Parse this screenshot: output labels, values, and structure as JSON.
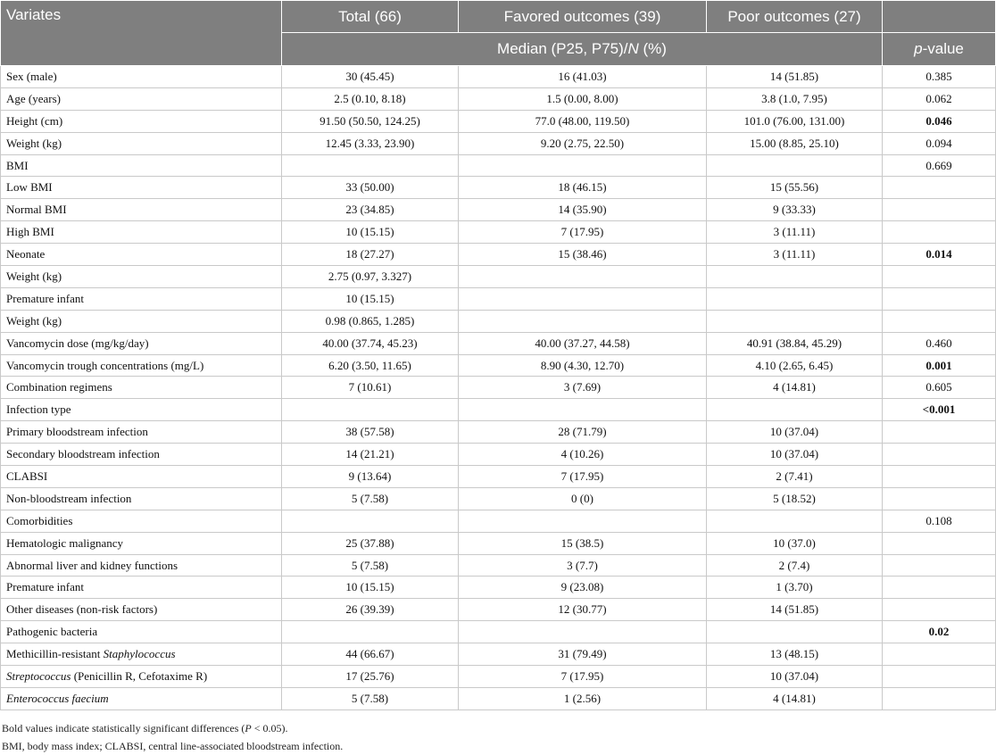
{
  "header": {
    "variates": "Variates",
    "total": "Total (66)",
    "favored": "Favored outcomes (39)",
    "poor": "Poor outcomes (27)",
    "median_pre": "Median (P25, P75)/",
    "median_n": "N",
    "median_post": " (%)",
    "p_italic": "p",
    "p_rest": "-value"
  },
  "rows": [
    {
      "label": "Sex (male)",
      "total": "30 (45.45)",
      "favored": "16 (41.03)",
      "poor": "14 (51.85)",
      "p": "0.385",
      "bold": false
    },
    {
      "label": "Age (years)",
      "total": "2.5 (0.10, 8.18)",
      "favored": "1.5 (0.00, 8.00)",
      "poor": "3.8 (1.0, 7.95)",
      "p": "0.062",
      "bold": false
    },
    {
      "label": "Height (cm)",
      "total": "91.50 (50.50, 124.25)",
      "favored": "77.0 (48.00, 119.50)",
      "poor": "101.0 (76.00, 131.00)",
      "p": "0.046",
      "bold": true
    },
    {
      "label": "Weight (kg)",
      "total": "12.45 (3.33, 23.90)",
      "favored": "9.20 (2.75, 22.50)",
      "poor": "15.00 (8.85, 25.10)",
      "p": "0.094",
      "bold": false
    },
    {
      "label": "BMI",
      "total": "",
      "favored": "",
      "poor": "",
      "p": "0.669",
      "bold": false
    },
    {
      "label": "Low BMI",
      "total": "33 (50.00)",
      "favored": "18 (46.15)",
      "poor": "15 (55.56)",
      "p": "",
      "bold": false
    },
    {
      "label": "Normal BMI",
      "total": "23 (34.85)",
      "favored": "14 (35.90)",
      "poor": "9 (33.33)",
      "p": "",
      "bold": false
    },
    {
      "label": "High BMI",
      "total": "10 (15.15)",
      "favored": "7 (17.95)",
      "poor": "3 (11.11)",
      "p": "",
      "bold": false
    },
    {
      "label": "Neonate",
      "total": "18 (27.27)",
      "favored": "15 (38.46)",
      "poor": "3 (11.11)",
      "p": "0.014",
      "bold": true
    },
    {
      "label": "Weight (kg)",
      "total": "2.75 (0.97, 3.327)",
      "favored": "",
      "poor": "",
      "p": "",
      "bold": false
    },
    {
      "label": "Premature infant",
      "total": "10 (15.15)",
      "favored": "",
      "poor": "",
      "p": "",
      "bold": false
    },
    {
      "label": "Weight (kg)",
      "total": "0.98 (0.865, 1.285)",
      "favored": "",
      "poor": "",
      "p": "",
      "bold": false
    },
    {
      "label": "Vancomycin dose (mg/kg/day)",
      "total": "40.00 (37.74, 45.23)",
      "favored": "40.00 (37.27, 44.58)",
      "poor": "40.91 (38.84, 45.29)",
      "p": "0.460",
      "bold": false
    },
    {
      "label": "Vancomycin trough concentrations (mg/L)",
      "total": "6.20 (3.50, 11.65)",
      "favored": "8.90 (4.30, 12.70)",
      "poor": "4.10 (2.65, 6.45)",
      "p": "0.001",
      "bold": true
    },
    {
      "label": "Combination regimens",
      "total": "7 (10.61)",
      "favored": "3 (7.69)",
      "poor": "4 (14.81)",
      "p": "0.605",
      "bold": false
    },
    {
      "label": "Infection type",
      "total": "",
      "favored": "",
      "poor": "",
      "p": "<0.001",
      "bold": true
    },
    {
      "label": "Primary bloodstream infection",
      "total": "38 (57.58)",
      "favored": "28 (71.79)",
      "poor": "10 (37.04)",
      "p": "",
      "bold": false
    },
    {
      "label": "Secondary bloodstream infection",
      "total": "14 (21.21)",
      "favored": "4 (10.26)",
      "poor": "10 (37.04)",
      "p": "",
      "bold": false
    },
    {
      "label": "CLABSI",
      "total": "9 (13.64)",
      "favored": "7 (17.95)",
      "poor": "2 (7.41)",
      "p": "",
      "bold": false
    },
    {
      "label": "Non-bloodstream infection",
      "total": "5 (7.58)",
      "favored": "0 (0)",
      "poor": "5 (18.52)",
      "p": "",
      "bold": false
    },
    {
      "label": "Comorbidities",
      "total": "",
      "favored": "",
      "poor": "",
      "p": "0.108",
      "bold": false
    },
    {
      "label": "Hematologic malignancy",
      "total": "25 (37.88)",
      "favored": "15 (38.5)",
      "poor": "10 (37.0)",
      "p": "",
      "bold": false
    },
    {
      "label": "Abnormal liver and kidney functions",
      "total": "5 (7.58)",
      "favored": "3 (7.7)",
      "poor": "2 (7.4)",
      "p": "",
      "bold": false
    },
    {
      "label": "Premature infant",
      "total": "10 (15.15)",
      "favored": "9 (23.08)",
      "poor": "1 (3.70)",
      "p": "",
      "bold": false
    },
    {
      "label": "Other diseases (non-risk factors)",
      "total": "26 (39.39)",
      "favored": "12 (30.77)",
      "poor": "14 (51.85)",
      "p": "",
      "bold": false
    },
    {
      "label": "Pathogenic bacteria",
      "total": "",
      "favored": "",
      "poor": "",
      "p": "0.02",
      "bold": true
    },
    {
      "label_pre": "Methicillin-resistant ",
      "label_italic": "Staphylococcus",
      "label_post": "",
      "total": "44 (66.67)",
      "favored": "31 (79.49)",
      "poor": "13 (48.15)",
      "p": "",
      "bold": false
    },
    {
      "label_pre": "",
      "label_italic": "Streptococcus",
      "label_post": " (Penicillin R, Cefotaxime R)",
      "total": "17 (25.76)",
      "favored": "7 (17.95)",
      "poor": "10 (37.04)",
      "p": "",
      "bold": false
    },
    {
      "label_pre": "",
      "label_italic": "Enterococcus faecium",
      "label_post": "",
      "total": "5 (7.58)",
      "favored": "1 (2.56)",
      "poor": "4 (14.81)",
      "p": "",
      "bold": false
    }
  ],
  "footnotes": {
    "bold_pre": "Bold values indicate statistically significant differences (",
    "bold_p": "P",
    "bold_post": " < 0.05).",
    "abbrev": "BMI, body mass index; CLABSI, central line-associated bloodstream infection."
  }
}
